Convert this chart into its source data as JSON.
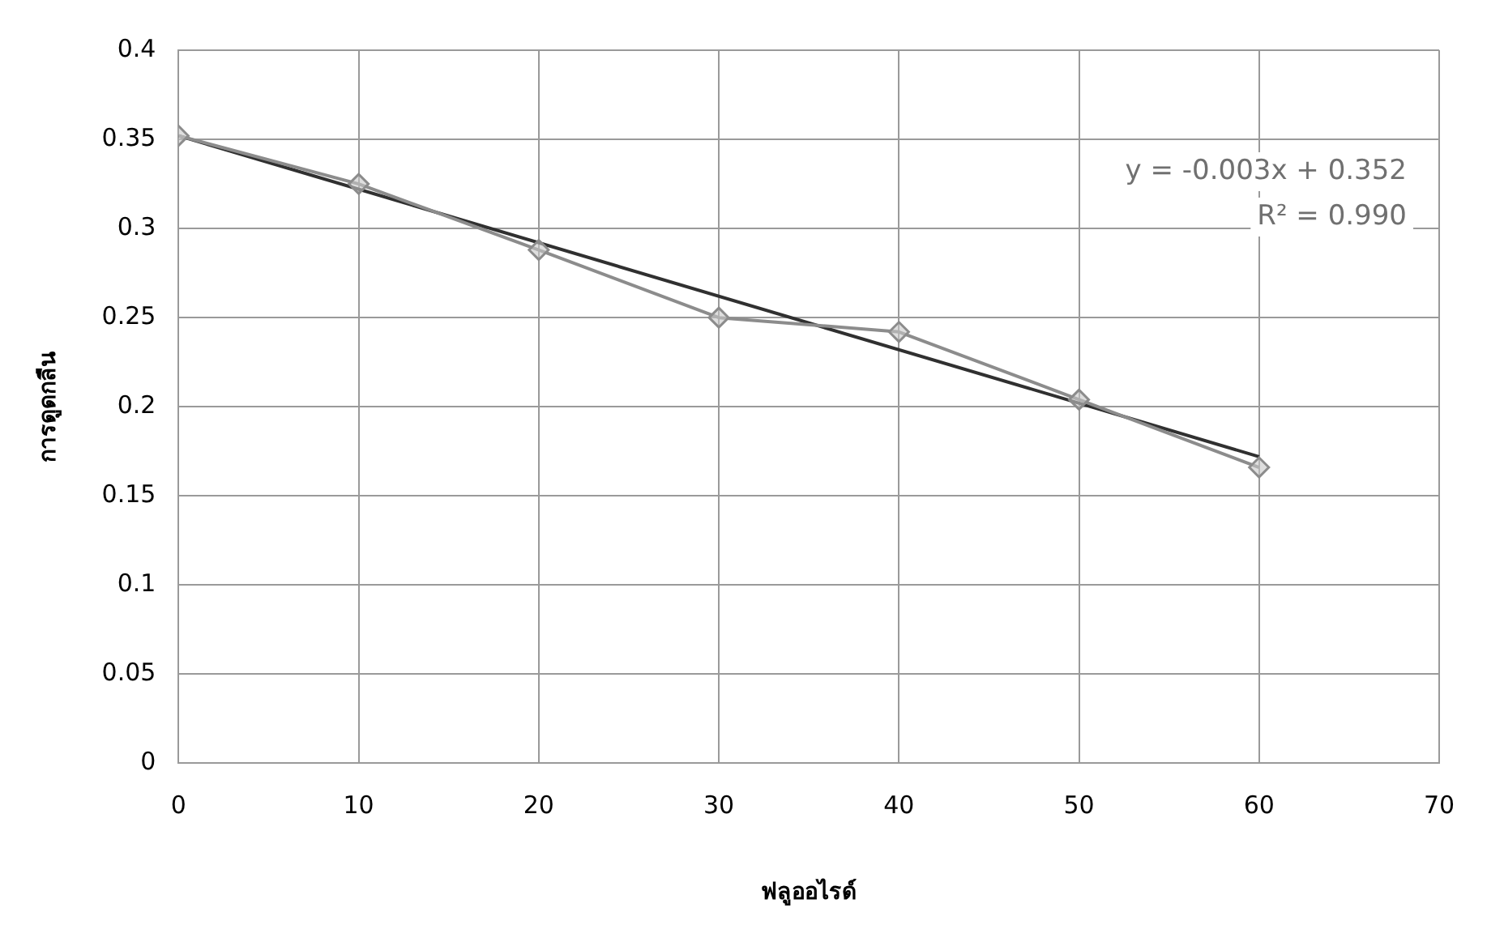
{
  "chart_data": {
    "type": "scatter",
    "xlabel": "ฟลูออไรด์",
    "ylabel": "การดูดกลืน",
    "xlim": [
      0,
      70
    ],
    "xticks": [
      0,
      10,
      20,
      30,
      40,
      50,
      60,
      70
    ],
    "ylim": [
      0,
      0.4
    ],
    "yticks": [
      0,
      0.05,
      0.1,
      0.15,
      0.2,
      0.25,
      0.3,
      0.35,
      0.4
    ],
    "grid": true,
    "legend": false,
    "series": [
      {
        "type": "line",
        "color": "#8c8c8c",
        "marker": "diamond",
        "line_style": "solid",
        "x": [
          0,
          10,
          20,
          30,
          40,
          50,
          60
        ],
        "values": [
          0.352,
          0.325,
          0.288,
          0.25,
          0.242,
          0.204,
          0.166
        ]
      },
      {
        "type": "line",
        "color": "#303030",
        "marker": "none",
        "line_style": "solid",
        "x": [
          0,
          60
        ],
        "values": [
          0.352,
          0.172
        ]
      }
    ],
    "annotations": [
      "y = -0.003x + 0.352",
      "R² = 0.990"
    ]
  }
}
